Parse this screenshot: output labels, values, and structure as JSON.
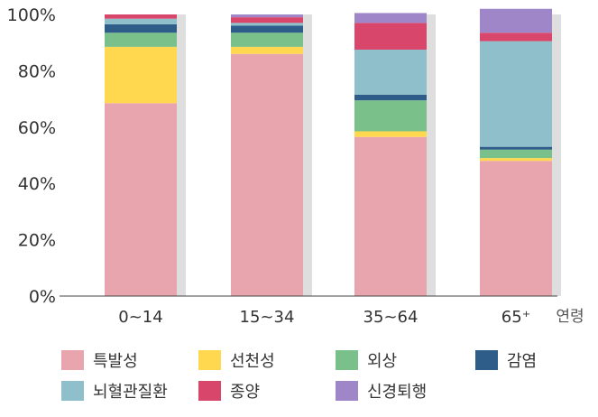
{
  "chart_data": {
    "type": "bar",
    "stacked": true,
    "categories": [
      "0~14",
      "15~34",
      "35~64",
      "65⁺"
    ],
    "xlabel": "연령",
    "ylabel": "",
    "ylim": [
      0,
      100
    ],
    "yticks": [
      "0%",
      "20%",
      "40%",
      "60%",
      "80%",
      "100%"
    ],
    "legend_position": "bottom",
    "series": [
      {
        "name": "특발성",
        "color": "#e8a5ad",
        "values": [
          68.5,
          86.0,
          56.5,
          48.0
        ]
      },
      {
        "name": "선천성",
        "color": "#ffd84f",
        "values": [
          20.0,
          2.5,
          2.0,
          1.0
        ]
      },
      {
        "name": "외상",
        "color": "#79c08b",
        "values": [
          5.0,
          5.0,
          11.0,
          3.0
        ]
      },
      {
        "name": "감염",
        "color": "#2f5d8a",
        "values": [
          3.0,
          2.5,
          2.0,
          1.0
        ]
      },
      {
        "name": "뇌혈관질환",
        "color": "#8fbfca",
        "values": [
          2.0,
          1.0,
          16.0,
          37.5
        ]
      },
      {
        "name": "종양",
        "color": "#d8476b",
        "values": [
          1.5,
          2.0,
          9.5,
          3.0
        ]
      },
      {
        "name": "신경퇴행",
        "color": "#9f86c8",
        "values": [
          0,
          1.0,
          3.5,
          8.5
        ]
      }
    ]
  }
}
